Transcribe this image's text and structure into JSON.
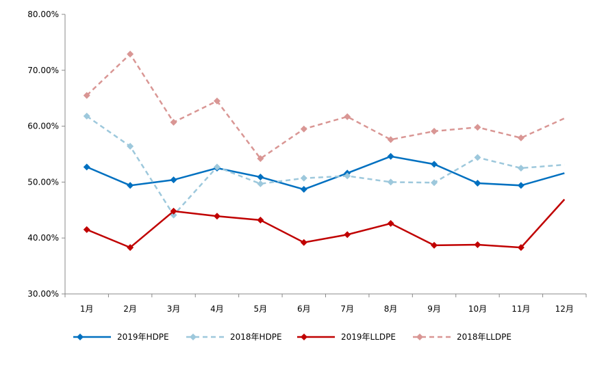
{
  "chart_data": {
    "type": "line",
    "title": "",
    "xlabel": "",
    "ylabel": "",
    "categories": [
      "1月",
      "2月",
      "3月",
      "4月",
      "5月",
      "6月",
      "7月",
      "8月",
      "9月",
      "10月",
      "11月",
      "12月"
    ],
    "ylim": [
      30,
      80
    ],
    "yticks": [
      30,
      40,
      50,
      60,
      70,
      80
    ],
    "ytick_labels": [
      "30.00%",
      "40.00%",
      "50.00%",
      "60.00%",
      "70.00%",
      "80.00%"
    ],
    "grid": false,
    "legend_position": "bottom",
    "series": [
      {
        "name": "2019年HDPE",
        "color": "#0070C0",
        "dashed": false,
        "values": [
          52.7,
          49.4,
          50.4,
          52.5,
          50.9,
          48.7,
          51.6,
          54.6,
          53.2,
          49.8,
          49.4,
          51.6
        ]
      },
      {
        "name": "2018年HDPE",
        "color": "#9DC8DC",
        "dashed": true,
        "values": [
          61.8,
          56.4,
          44.1,
          52.7,
          49.7,
          50.7,
          51.1,
          50.0,
          49.9,
          54.4,
          52.5,
          53.1
        ]
      },
      {
        "name": "2019年LLDPE",
        "color": "#C00000",
        "dashed": false,
        "values": [
          41.5,
          38.3,
          44.8,
          43.9,
          43.2,
          39.2,
          40.6,
          42.6,
          38.7,
          38.8,
          38.3,
          46.9
        ]
      },
      {
        "name": "2018年LLDPE",
        "color": "#D99694",
        "dashed": true,
        "values": [
          65.5,
          72.9,
          60.7,
          64.5,
          54.2,
          59.5,
          61.7,
          57.6,
          59.1,
          59.8,
          57.9,
          61.4
        ]
      }
    ]
  }
}
